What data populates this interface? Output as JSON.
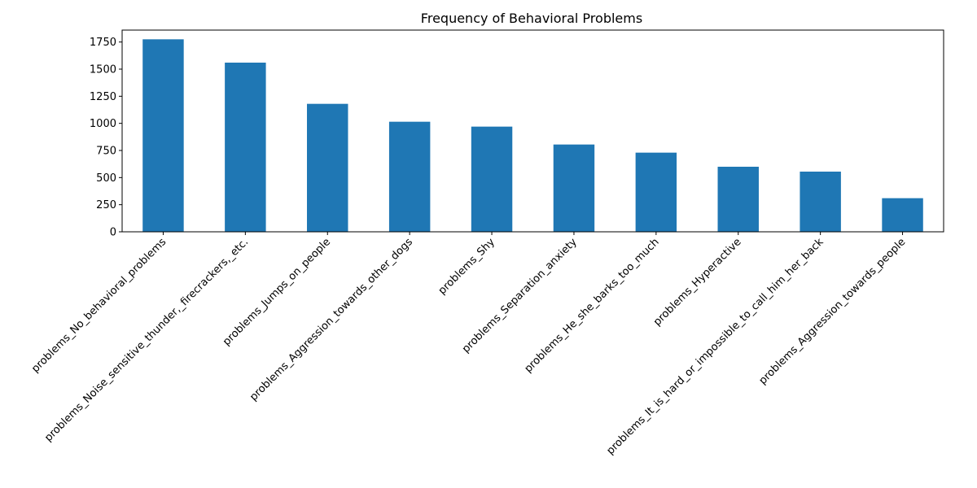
{
  "chart_data": {
    "type": "bar",
    "title": "Frequency of Behavioral Problems",
    "xlabel": "",
    "ylabel": "",
    "categories": [
      "problems_No_behavioral_problems",
      "problems_Noise_sensitive_thunder,_firecrackers,_etc.",
      "problems_Jumps_on_people",
      "problems_Aggression_towards_other_dogs",
      "problems_Shy",
      "problems_Separation_anxiety",
      "problems_He_she_barks_too_much",
      "problems_Hyperactive",
      "problems_It_is_hard_or_impossible_to_call_him_her_back",
      "problems_Aggression_towards_people"
    ],
    "values": [
      1775,
      1560,
      1180,
      1015,
      970,
      805,
      730,
      600,
      555,
      310
    ],
    "ylim": [
      0,
      1860
    ],
    "yticks": [
      0,
      250,
      500,
      750,
      1000,
      1250,
      1500,
      1750
    ],
    "grid": false,
    "legend": "none",
    "bar_color": "#1f77b4"
  }
}
